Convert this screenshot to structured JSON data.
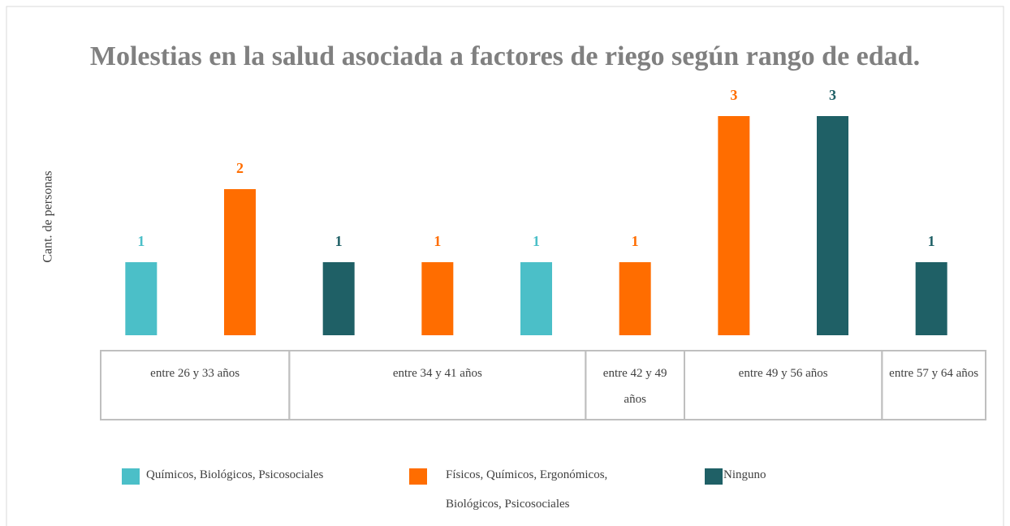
{
  "chart_data": {
    "type": "bar",
    "title": "Molestias en la salud asociada a factores de riego según rango de edad.",
    "ylabel": "Cant. de personas",
    "ylim": [
      0,
      3.4
    ],
    "series": [
      {
        "name": "Químicos, Biológicos, Psicosociales",
        "color": "#4bbfc8"
      },
      {
        "name": "Físicos, Químicos, Ergonómicos, Biológicos, Psicosociales",
        "color": "#ff6d00"
      },
      {
        "name": "Ninguno",
        "color": "#1f6066"
      }
    ],
    "categories": [
      {
        "label": "entre 26 y 33 años",
        "bars": [
          {
            "series": 0,
            "value": 1
          },
          {
            "series": 1,
            "value": 2
          }
        ]
      },
      {
        "label": "entre 34 y 41 años",
        "bars": [
          {
            "series": 2,
            "value": 1
          },
          {
            "series": 1,
            "value": 1
          },
          {
            "series": 0,
            "value": 1
          }
        ]
      },
      {
        "label": "entre 42 y 49 años",
        "bars": [
          {
            "series": 1,
            "value": 1
          }
        ]
      },
      {
        "label": "entre 49 y 56 años",
        "bars": [
          {
            "series": 1,
            "value": 3
          },
          {
            "series": 2,
            "value": 3
          }
        ]
      },
      {
        "label": "entre 57 y 64 años",
        "bars": [
          {
            "series": 2,
            "value": 1
          }
        ]
      }
    ]
  }
}
